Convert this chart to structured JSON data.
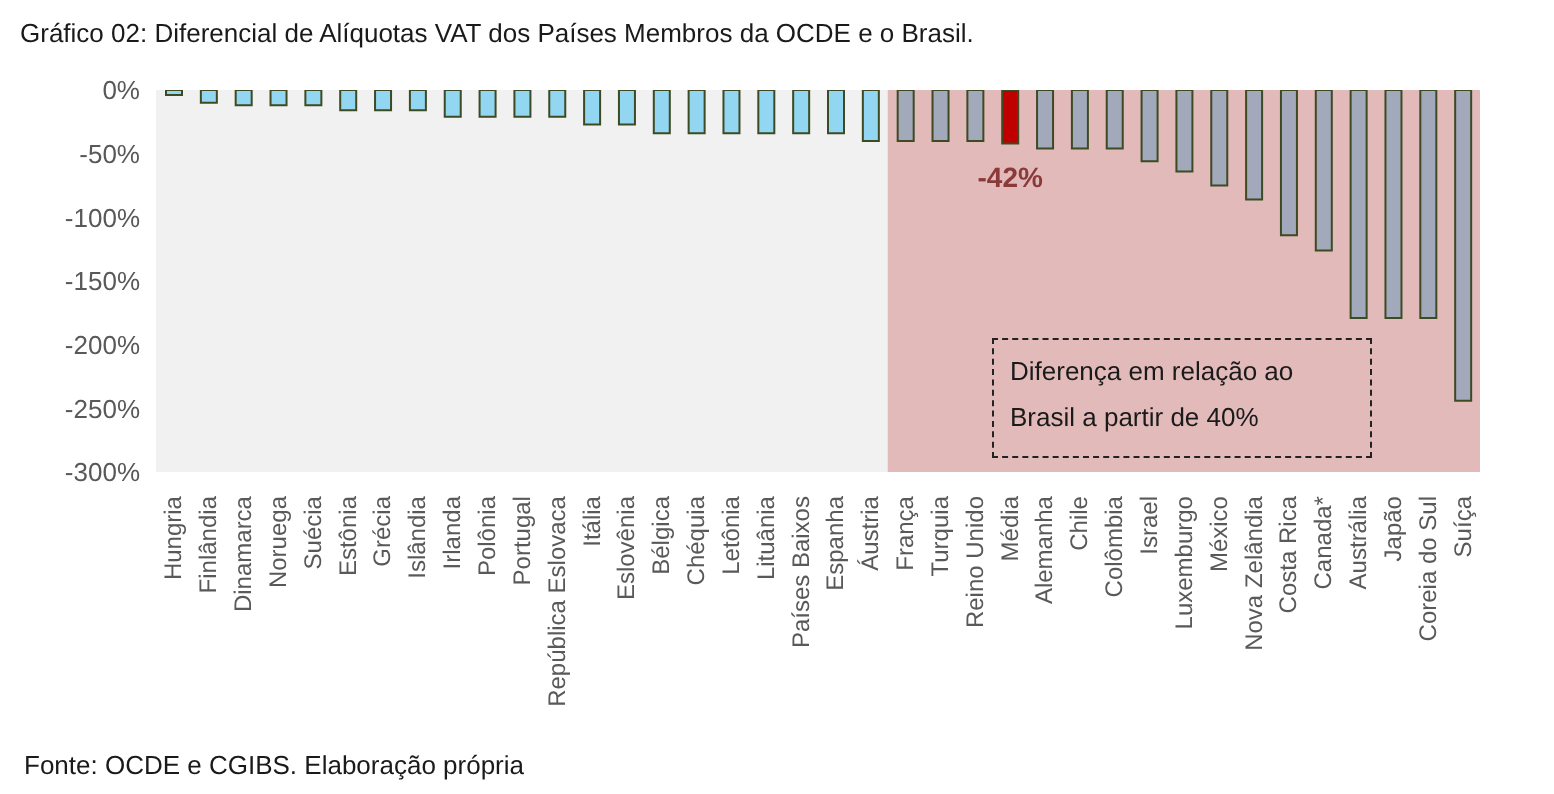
{
  "chart_data": {
    "type": "bar",
    "title": "Gráfico 02: Diferencial de Alíquotas VAT dos Países Membros da OCDE e o Brasil.",
    "categories": [
      "Hungria",
      "Finlândia",
      "Dinamarca",
      "Noruega",
      "Suécia",
      "Estônia",
      "Grécia",
      "Islândia",
      "Irlanda",
      "Polônia",
      "Portugal",
      "República Eslovaca",
      "Itália",
      "Eslovênia",
      "Bélgica",
      "Chéquia",
      "Letônia",
      "Lituânia",
      "Países Baixos",
      "Espanha",
      "Áustria",
      "França",
      "Turquia",
      "Reino Unido",
      "Média",
      "Alemanha",
      "Chile",
      "Colômbia",
      "Israel",
      "Luxemburgo",
      "México",
      "Nova Zelândia",
      "Costa Rica",
      "Canada*",
      "Austrália",
      "Japão",
      "Coreia do Sul",
      "Suíça"
    ],
    "values": [
      -4,
      -10,
      -12,
      -12,
      -12,
      -16,
      -16,
      -16,
      -21,
      -21,
      -21,
      -21,
      -27,
      -27,
      -34,
      -34,
      -34,
      -34,
      -34,
      -34,
      -40,
      -40,
      -40,
      -40,
      -42,
      -46,
      -46,
      -46,
      -56,
      -64,
      -75,
      -86,
      -114,
      -126,
      -179,
      -179,
      -179,
      -244
    ],
    "colors": [
      "#92d6f2",
      "#92d6f2",
      "#92d6f2",
      "#92d6f2",
      "#92d6f2",
      "#92d6f2",
      "#92d6f2",
      "#92d6f2",
      "#92d6f2",
      "#92d6f2",
      "#92d6f2",
      "#92d6f2",
      "#92d6f2",
      "#92d6f2",
      "#92d6f2",
      "#92d6f2",
      "#92d6f2",
      "#92d6f2",
      "#92d6f2",
      "#92d6f2",
      "#92d6f2",
      "#a1a9bb",
      "#a1a9bb",
      "#a1a9bb",
      "#c00000",
      "#a1a9bb",
      "#a1a9bb",
      "#a1a9bb",
      "#a1a9bb",
      "#a1a9bb",
      "#a1a9bb",
      "#a1a9bb",
      "#a1a9bb",
      "#a1a9bb",
      "#a1a9bb",
      "#a1a9bb",
      "#a1a9bb",
      "#a1a9bb"
    ],
    "value_labels": [
      null,
      null,
      null,
      null,
      null,
      null,
      null,
      null,
      null,
      null,
      null,
      null,
      null,
      null,
      null,
      null,
      null,
      null,
      null,
      null,
      null,
      null,
      null,
      null,
      "-42%",
      null,
      null,
      null,
      null,
      null,
      null,
      null,
      null,
      null,
      null,
      null,
      null,
      null
    ],
    "ylim": [
      -300,
      0
    ],
    "yticks": [
      {
        "value": -300,
        "label": "-300%"
      },
      {
        "value": -250,
        "label": "-250%"
      },
      {
        "value": -200,
        "label": "-200%"
      },
      {
        "value": -150,
        "label": "-150%"
      },
      {
        "value": -100,
        "label": "-100%"
      },
      {
        "value": -50,
        "label": "-50%"
      },
      {
        "value": 0,
        "label": "0%"
      }
    ],
    "bands": [
      {
        "axis": "x",
        "from": "Hungria",
        "to": "Áustria",
        "color": "#f1f1f1"
      },
      {
        "axis": "x",
        "from": "França",
        "to": "Suíça",
        "color": "#e2baba"
      }
    ],
    "annotations": [
      "Diferença em relação ao Brasil a partir de 40%",
      "Fonte: OCDE e CGIBS. Elaboração própria"
    ],
    "grid": false,
    "legend": false
  }
}
